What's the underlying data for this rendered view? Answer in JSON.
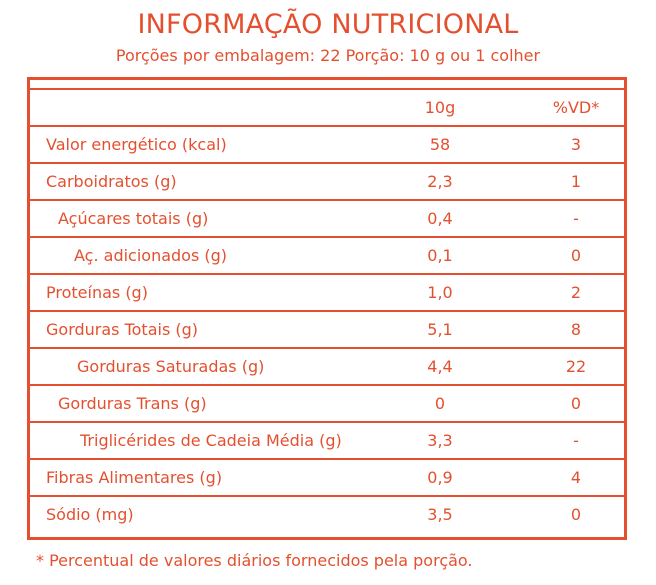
{
  "title": "INFORMAÇÃO NUTRICIONAL",
  "subtitle": "Porções por embalagem: 22  Porção: 10 g ou 1 colher",
  "columns": {
    "amount": "10g",
    "vd": "%VD*"
  },
  "rows": [
    {
      "label": "Valor energético (kcal)",
      "amount": "58",
      "vd": "3"
    },
    {
      "label": "Carboidratos (g)",
      "amount": "2,3",
      "vd": "1"
    },
    {
      "label": "Açúcares totais (g)",
      "amount": "0,4",
      "vd": "-"
    },
    {
      "label": "Aç. adicionados (g)",
      "amount": "0,1",
      "vd": "0"
    },
    {
      "label": "Proteínas (g)",
      "amount": "1,0",
      "vd": "2"
    },
    {
      "label": "Gorduras Totais (g)",
      "amount": "5,1",
      "vd": "8"
    },
    {
      "label": "Gorduras Saturadas (g)",
      "amount": "4,4",
      "vd": "22"
    },
    {
      "label": "Gorduras Trans (g)",
      "amount": "0",
      "vd": "0"
    },
    {
      "label": "Triglicérides de Cadeia Média (g)",
      "amount": "3,3",
      "vd": "-"
    },
    {
      "label": "Fibras Alimentares (g)",
      "amount": "0,9",
      "vd": "4"
    },
    {
      "label": "Sódio (mg)",
      "amount": "3,5",
      "vd": "0"
    }
  ],
  "footnote": "* Percentual de valores diários fornecidos pela porção.",
  "colors": {
    "accent": "#e4502f",
    "background": "#ffffff"
  }
}
